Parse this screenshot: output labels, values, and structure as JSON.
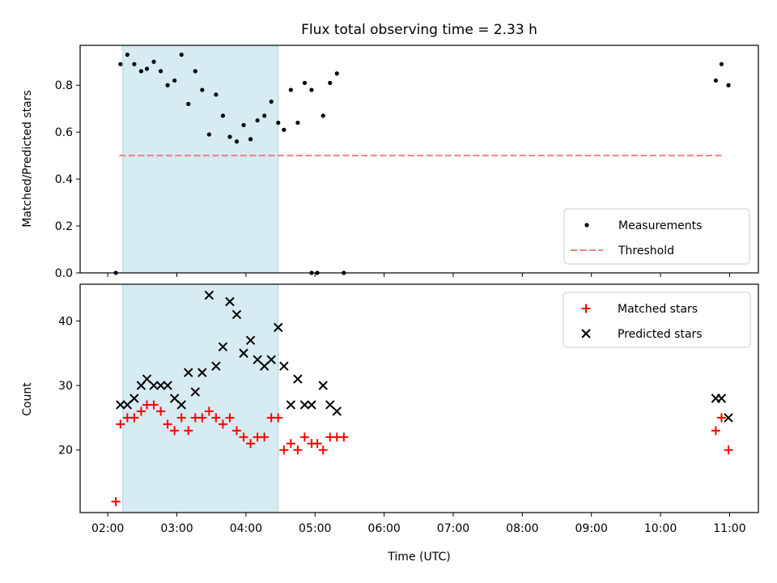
{
  "chart_data": [
    {
      "type": "scatter",
      "title": "Flux total observing time = 2.33 h",
      "xlabel": "",
      "ylabel": "Matched/Predicted stars",
      "xlim": [
        "01:36",
        "11:25"
      ],
      "ylim": [
        0,
        0.97
      ],
      "yticks": [
        "0.0",
        "0.2",
        "0.4",
        "0.6",
        "0.8"
      ],
      "shaded_interval": [
        "02:13",
        "04:28"
      ],
      "threshold": {
        "name": "Threshold",
        "y": 0.5,
        "x_range": [
          "02:10",
          "10:53"
        ],
        "color": "#f08080"
      },
      "legend": {
        "placement": "lower-right",
        "entries": [
          "Measurements",
          "Threshold"
        ]
      },
      "series": [
        {
          "name": "Measurements",
          "color": "#000000",
          "points": [
            [
              "02:07",
              0.0
            ],
            [
              "02:11",
              0.89
            ],
            [
              "02:17",
              0.93
            ],
            [
              "02:23",
              0.89
            ],
            [
              "02:29",
              0.86
            ],
            [
              "02:34",
              0.87
            ],
            [
              "02:40",
              0.9
            ],
            [
              "02:46",
              0.86
            ],
            [
              "02:52",
              0.8
            ],
            [
              "02:58",
              0.82
            ],
            [
              "03:04",
              0.93
            ],
            [
              "03:10",
              0.72
            ],
            [
              "03:16",
              0.86
            ],
            [
              "03:22",
              0.78
            ],
            [
              "03:28",
              0.59
            ],
            [
              "03:34",
              0.76
            ],
            [
              "03:40",
              0.67
            ],
            [
              "03:46",
              0.58
            ],
            [
              "03:52",
              0.56
            ],
            [
              "03:58",
              0.63
            ],
            [
              "04:04",
              0.57
            ],
            [
              "04:10",
              0.65
            ],
            [
              "04:16",
              0.67
            ],
            [
              "04:22",
              0.73
            ],
            [
              "04:28",
              0.64
            ],
            [
              "04:33",
              0.61
            ],
            [
              "04:39",
              0.78
            ],
            [
              "04:45",
              0.64
            ],
            [
              "04:51",
              0.81
            ],
            [
              "04:57",
              0.78
            ],
            [
              "04:57",
              0.0
            ],
            [
              "05:02",
              0.0
            ],
            [
              "05:07",
              0.67
            ],
            [
              "05:13",
              0.81
            ],
            [
              "05:19",
              0.85
            ],
            [
              "05:25",
              0.0
            ],
            [
              "10:48",
              0.82
            ],
            [
              "10:53",
              0.89
            ],
            [
              "10:59",
              0.8
            ]
          ]
        }
      ]
    },
    {
      "type": "scatter",
      "title": "",
      "xlabel": "Time (UTC)",
      "ylabel": "Count",
      "xlim": [
        "01:36",
        "11:25"
      ],
      "ylim": [
        10.3,
        45.7
      ],
      "xticks": [
        "02:00",
        "03:00",
        "04:00",
        "05:00",
        "06:00",
        "07:00",
        "08:00",
        "09:00",
        "10:00",
        "11:00"
      ],
      "yticks": [
        "20",
        "30",
        "40"
      ],
      "shaded_interval": [
        "02:13",
        "04:28"
      ],
      "legend": {
        "placement": "top-right",
        "entries": [
          "Matched stars",
          "Predicted stars"
        ]
      },
      "series": [
        {
          "name": "Matched stars",
          "marker": "+",
          "color": "#ff0000",
          "points": [
            [
              "02:07",
              12
            ],
            [
              "02:11",
              24
            ],
            [
              "02:17",
              25
            ],
            [
              "02:23",
              25
            ],
            [
              "02:29",
              26
            ],
            [
              "02:34",
              27
            ],
            [
              "02:40",
              27
            ],
            [
              "02:46",
              26
            ],
            [
              "02:52",
              24
            ],
            [
              "02:58",
              23
            ],
            [
              "03:04",
              25
            ],
            [
              "03:10",
              23
            ],
            [
              "03:16",
              25
            ],
            [
              "03:22",
              25
            ],
            [
              "03:28",
              26
            ],
            [
              "03:34",
              25
            ],
            [
              "03:40",
              24
            ],
            [
              "03:46",
              25
            ],
            [
              "03:52",
              23
            ],
            [
              "03:58",
              22
            ],
            [
              "04:04",
              21
            ],
            [
              "04:10",
              22
            ],
            [
              "04:16",
              22
            ],
            [
              "04:22",
              25
            ],
            [
              "04:28",
              25
            ],
            [
              "04:33",
              20
            ],
            [
              "04:39",
              21
            ],
            [
              "04:45",
              20
            ],
            [
              "04:51",
              22
            ],
            [
              "04:57",
              21
            ],
            [
              "05:02",
              21
            ],
            [
              "05:07",
              20
            ],
            [
              "05:13",
              22
            ],
            [
              "05:19",
              22
            ],
            [
              "05:25",
              22
            ],
            [
              "10:48",
              23
            ],
            [
              "10:53",
              25
            ],
            [
              "10:59",
              20
            ]
          ]
        },
        {
          "name": "Predicted stars",
          "marker": "x",
          "color": "#000000",
          "points": [
            [
              "02:11",
              27
            ],
            [
              "02:17",
              27
            ],
            [
              "02:23",
              28
            ],
            [
              "02:29",
              30
            ],
            [
              "02:34",
              31
            ],
            [
              "02:40",
              30
            ],
            [
              "02:46",
              30
            ],
            [
              "02:52",
              30
            ],
            [
              "02:58",
              28
            ],
            [
              "03:04",
              27
            ],
            [
              "03:10",
              32
            ],
            [
              "03:16",
              29
            ],
            [
              "03:22",
              32
            ],
            [
              "03:28",
              44
            ],
            [
              "03:34",
              33
            ],
            [
              "03:40",
              36
            ],
            [
              "03:46",
              43
            ],
            [
              "03:52",
              41
            ],
            [
              "03:58",
              35
            ],
            [
              "04:04",
              37
            ],
            [
              "04:10",
              34
            ],
            [
              "04:16",
              33
            ],
            [
              "04:22",
              34
            ],
            [
              "04:28",
              39
            ],
            [
              "04:33",
              33
            ],
            [
              "04:39",
              27
            ],
            [
              "04:45",
              31
            ],
            [
              "04:51",
              27
            ],
            [
              "04:57",
              27
            ],
            [
              "05:07",
              30
            ],
            [
              "05:13",
              27
            ],
            [
              "05:19",
              26
            ],
            [
              "10:48",
              28
            ],
            [
              "10:53",
              28
            ],
            [
              "10:59",
              25
            ]
          ]
        }
      ]
    }
  ]
}
